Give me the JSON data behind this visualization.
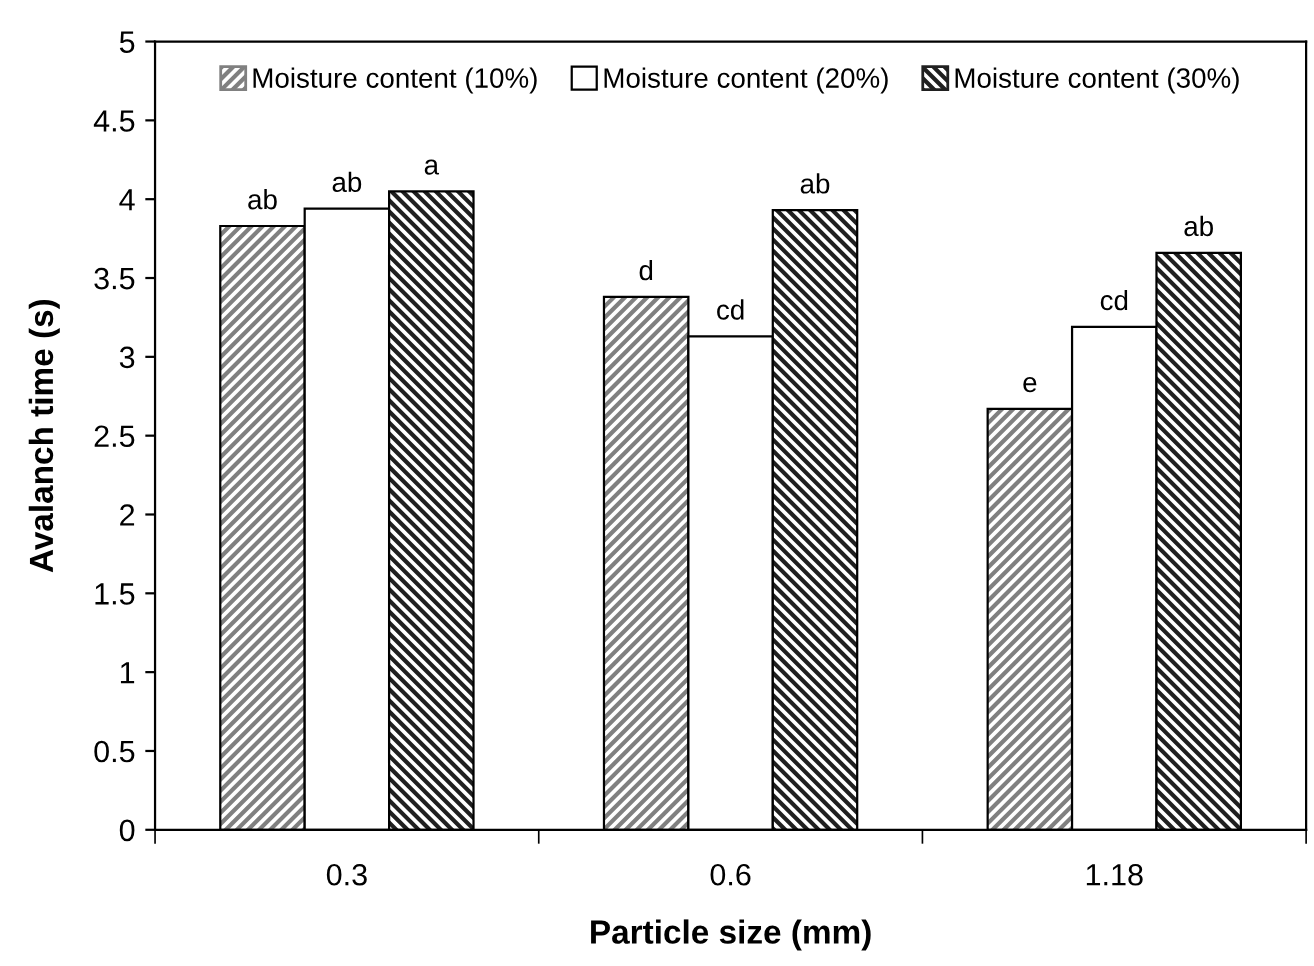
{
  "chart_data": {
    "type": "bar",
    "xlabel": "Particle size (mm)",
    "ylabel": "Avalanch time (s)",
    "categories": [
      "0.3",
      "0.6",
      "1.18"
    ],
    "series": [
      {
        "name": "Moisture content (10%)",
        "color": "#808080",
        "values": [
          3.83,
          3.38,
          2.67
        ],
        "value_labels": [
          "ab",
          "d",
          "e"
        ]
      },
      {
        "name": "Moisture content (20%)",
        "color": "#ffffff",
        "values": [
          3.94,
          3.13,
          3.19
        ],
        "value_labels": [
          "ab",
          "cd",
          "cd"
        ]
      },
      {
        "name": "Moisture content (30%)",
        "color": "#202020",
        "values": [
          4.05,
          3.93,
          3.66
        ],
        "value_labels": [
          "a",
          "ab",
          "ab"
        ]
      }
    ],
    "ylim": [
      0,
      5
    ],
    "yticks": [
      0,
      0.5,
      1,
      1.5,
      2,
      2.5,
      3,
      3.5,
      4,
      4.5,
      5
    ],
    "grid": false,
    "legend": "top"
  }
}
